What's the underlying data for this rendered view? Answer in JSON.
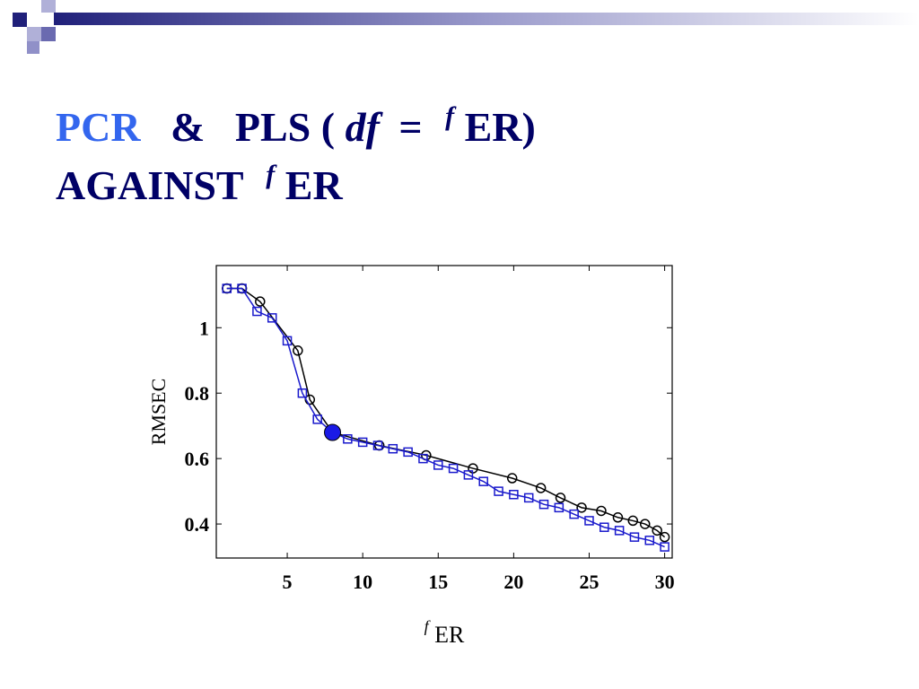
{
  "slide": {
    "title_line1": [
      "PCR",
      "&",
      "PLS (",
      "df",
      "=",
      "f",
      "ER)"
    ],
    "title_line2": [
      "AGAINST",
      "f",
      "ER"
    ]
  },
  "chart_data": {
    "type": "line",
    "ylabel": "RMSEC",
    "xlabel_sup": "f",
    "xlabel": "ER",
    "xlim": [
      0.3,
      30.5
    ],
    "ylim": [
      0.296,
      1.19
    ],
    "xticks": [
      5,
      10,
      15,
      20,
      25,
      30
    ],
    "yticks": [
      0.4,
      0.6,
      0.8,
      1
    ],
    "series": [
      {
        "color": "#000000",
        "marker": "circle",
        "x": [
          1,
          2,
          3.2,
          5.7,
          6.5,
          8,
          11.1,
          14.2,
          17.3,
          19.9,
          21.8,
          23.1,
          24.5,
          25.8,
          26.9,
          27.9,
          28.7,
          29.5,
          30
        ],
        "values": [
          1.12,
          1.12,
          1.08,
          0.93,
          0.78,
          0.68,
          0.64,
          0.61,
          0.57,
          0.54,
          0.51,
          0.48,
          0.45,
          0.44,
          0.42,
          0.41,
          0.4,
          0.38,
          0.36
        ]
      },
      {
        "color": "#1a1acc",
        "marker": "square",
        "x": [
          1,
          2,
          3,
          4,
          5,
          6,
          7,
          8,
          9,
          10,
          11,
          12,
          13,
          14,
          15,
          16,
          17,
          18,
          19,
          20,
          21,
          22,
          23,
          24,
          25,
          26,
          27,
          28,
          29,
          30
        ],
        "values": [
          1.12,
          1.12,
          1.05,
          1.03,
          0.96,
          0.8,
          0.72,
          0.68,
          0.66,
          0.65,
          0.64,
          0.63,
          0.62,
          0.6,
          0.58,
          0.57,
          0.55,
          0.53,
          0.5,
          0.49,
          0.48,
          0.46,
          0.45,
          0.43,
          0.41,
          0.39,
          0.38,
          0.36,
          0.35,
          0.33
        ]
      }
    ],
    "highlight": {
      "x": 8,
      "y": 0.68,
      "color": "#1a1ae6"
    }
  }
}
